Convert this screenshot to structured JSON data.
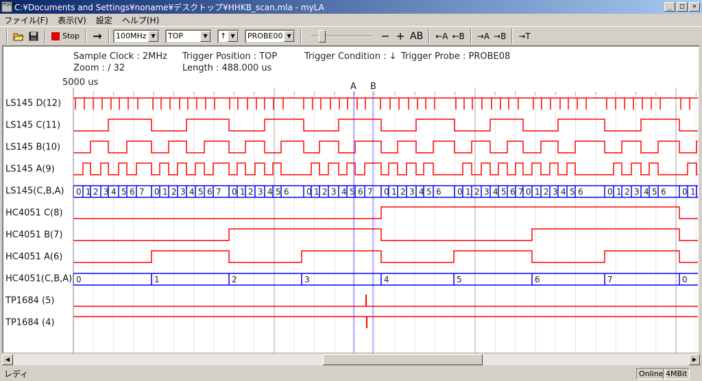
{
  "window": {
    "title": "C:¥Documents and Settings¥noname¥デスクトップ¥HHKB_scan.mla - myLA",
    "app_icon_text": "myLA",
    "controls": [
      "_",
      "□",
      "×"
    ]
  },
  "menu": [
    {
      "label": "ファイル(F)"
    },
    {
      "label": "表示(V)"
    },
    {
      "label": "設定"
    },
    {
      "label": "ヘルプ(H)"
    }
  ],
  "toolbar": {
    "open_icon": "folder-open-icon",
    "save_icon": "floppy-disk-icon",
    "stop_label": "Stop",
    "run_arrow": "→",
    "clock_select": "100MHz",
    "trigger_position_select": "TOP",
    "trigger_edge_select": "↑",
    "probe_select": "PROBE00",
    "zoom_slider_level": 0.15,
    "zoom_out": "−",
    "zoom_in": "+",
    "ab": "AB",
    "prev_a": "←A",
    "prev_b": "←B",
    "next_a": "→A",
    "next_b": "→B",
    "to_trigger": "→T"
  },
  "info": {
    "sample_clock": "Sample Clock : 2MHz",
    "zoom": "Zoom : /  32",
    "trigger_position": "Trigger Position : TOP",
    "length": "Length : 488.000 us",
    "trigger_condition": "Trigger Condition : ↓",
    "trigger_probe": "Trigger Probe : PROBE08"
  },
  "ruler": {
    "start_label": "5000 us",
    "cursor_a": "A",
    "cursor_b": "B"
  },
  "colors": {
    "waveform": "#ff0000",
    "bus": "#0000ff",
    "cursor": "#6060ff",
    "major_grid": "#a0a0a0",
    "minor_grid": "#e4e4e4"
  },
  "signals": [
    {
      "name": "LS145 D(12)",
      "kind": "pulse"
    },
    {
      "name": "LS145 C(11)",
      "kind": "bit",
      "bus": 0,
      "bit": 2
    },
    {
      "name": "LS145 B(10)",
      "kind": "bit",
      "bus": 0,
      "bit": 1
    },
    {
      "name": "LS145 A(9)",
      "kind": "bit",
      "bus": 0,
      "bit": 0
    },
    {
      "name": "LS145(C,B,A)",
      "kind": "bus",
      "bus": 0
    },
    {
      "name": "HC4051 C(8)",
      "kind": "bit",
      "bus": 1,
      "bit": 2
    },
    {
      "name": "HC4051 B(7)",
      "kind": "bit",
      "bus": 1,
      "bit": 1
    },
    {
      "name": "HC4051 A(6)",
      "kind": "bit",
      "bus": 1,
      "bit": 0
    },
    {
      "name": "HC4051(C,B,A)",
      "kind": "bus",
      "bus": 1
    },
    {
      "name": "TP1684 (5)",
      "kind": "spike-up"
    },
    {
      "name": "TP1684 (4)",
      "kind": "spike-down"
    }
  ],
  "buses": [
    {
      "values": [
        0,
        1,
        2,
        3,
        4,
        5,
        6,
        7,
        0,
        1,
        2,
        3,
        4,
        5,
        6,
        7,
        0,
        1,
        2,
        3,
        4,
        5,
        6,
        0,
        1,
        2,
        3,
        4,
        5,
        6,
        7,
        0,
        1,
        2,
        3,
        4,
        5,
        6,
        0,
        1,
        2,
        3,
        4,
        5,
        6,
        7,
        0,
        1,
        2,
        3,
        4,
        5,
        6,
        0,
        1,
        2,
        3,
        4,
        5,
        6,
        0,
        1,
        2
      ]
    },
    {
      "values": [
        0,
        1,
        2,
        3,
        4,
        5,
        6,
        7,
        0
      ]
    }
  ],
  "scrollbar": {
    "position": 0.6
  },
  "status": {
    "text": "レディ",
    "online": "Online",
    "memory": "4MBit"
  }
}
